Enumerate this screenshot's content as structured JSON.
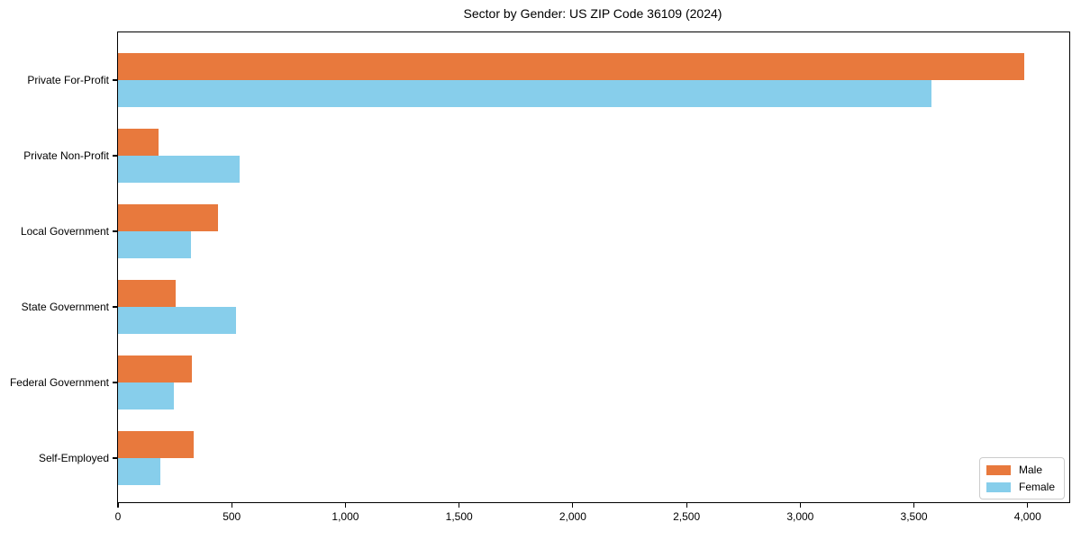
{
  "figure": {
    "background_color": "#ffffff",
    "frame_color": "#000000"
  },
  "chart_data": {
    "type": "bar",
    "orientation": "horizontal",
    "title": "Sector by Gender: US ZIP Code 36109 (2024)",
    "categories": [
      "Private For-Profit",
      "Private Non-Profit",
      "Local Government",
      "State Government",
      "Federal Government",
      "Self-Employed"
    ],
    "series": [
      {
        "name": "Male",
        "color": "#e8793d",
        "values": [
          3985,
          178,
          441,
          253,
          325,
          333
        ]
      },
      {
        "name": "Female",
        "color": "#87ceeb",
        "values": [
          3575,
          536,
          322,
          519,
          246,
          188
        ]
      }
    ],
    "xlabel": "",
    "ylabel": "",
    "xlim": [
      0,
      4183
    ],
    "xticks": [
      0,
      500,
      1000,
      1500,
      2000,
      2500,
      3000,
      3500,
      4000
    ],
    "xtick_labels": [
      "0",
      "500",
      "1,000",
      "1,500",
      "2,000",
      "2,500",
      "3,000",
      "3,500",
      "4,000"
    ],
    "grid": false,
    "legend_position": "lower right",
    "legend_labels": [
      "Male",
      "Female"
    ]
  }
}
